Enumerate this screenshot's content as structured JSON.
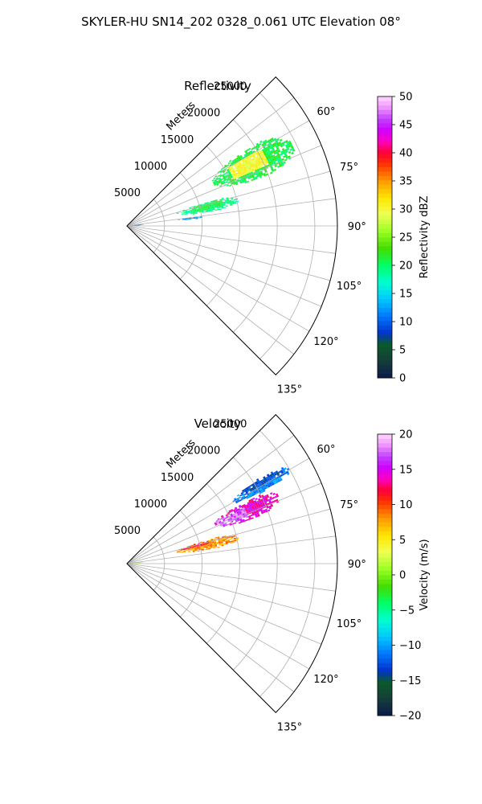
{
  "figure": {
    "suptitle": "SKYLER-HU  SN14_202  0328_0.061 UTC Elevation 08°"
  },
  "chart_data": [
    {
      "type": "heatmap",
      "projection": "polar-sector",
      "title": "Reflectivity",
      "radial_label": "Meters",
      "radial_ticks": [
        "5000",
        "10000",
        "15000",
        "20000",
        "25000"
      ],
      "radial_tick_values": [
        5000,
        10000,
        15000,
        20000,
        25000
      ],
      "rmax": 28000,
      "theta_ticks": [
        "60°",
        "75°",
        "90°",
        "105°",
        "120°",
        "135°"
      ],
      "theta_tick_values": [
        60,
        75,
        90,
        105,
        120,
        135
      ],
      "theta_range": [
        45,
        135
      ],
      "grid": true,
      "colorbar": {
        "label": "Reflectivity dBZ",
        "ticks": [
          "0",
          "5",
          "10",
          "15",
          "20",
          "25",
          "30",
          "35",
          "40",
          "45",
          "50"
        ],
        "range": [
          0,
          50
        ],
        "colormap": "pyart_HomeyerRainbow-like"
      },
      "echo_regions": [
        {
          "az_range": [
            57,
            70
          ],
          "r_range": [
            12500,
            24500
          ],
          "dominant_value": 21,
          "core_value": 30,
          "core_az": [
            60,
            66
          ],
          "core_r": [
            15500,
            20500
          ]
        },
        {
          "az_range": [
            73,
            80
          ],
          "r_range": [
            6500,
            15000
          ],
          "dominant_value": 19,
          "core_value": 21,
          "core_az": [
            74,
            78
          ],
          "core_r": [
            9000,
            13000
          ]
        },
        {
          "az_range": [
            82,
            84
          ],
          "r_range": [
            6500,
            10000
          ],
          "dominant_value": 12,
          "core_value": 12,
          "core_az": [
            82,
            84
          ],
          "core_r": [
            6500,
            10000
          ]
        },
        {
          "az_range": [
            82,
            88
          ],
          "r_range": [
            400,
            2000
          ],
          "dominant_value": 8,
          "core_value": 8,
          "core_az": [
            82,
            88
          ],
          "core_r": [
            400,
            2000
          ]
        }
      ]
    },
    {
      "type": "heatmap",
      "projection": "polar-sector",
      "title": "Velocity",
      "radial_label": "Meters",
      "radial_ticks": [
        "5000",
        "10000",
        "15000",
        "20000",
        "25000"
      ],
      "radial_tick_values": [
        5000,
        10000,
        15000,
        20000,
        25000
      ],
      "rmax": 28000,
      "theta_ticks": [
        "60°",
        "75°",
        "90°",
        "105°",
        "120°",
        "135°"
      ],
      "theta_tick_values": [
        60,
        75,
        90,
        105,
        120,
        135
      ],
      "theta_range": [
        45,
        135
      ],
      "grid": true,
      "colorbar": {
        "label": "Velocity (m/s)",
        "ticks": [
          "−20",
          "−15",
          "−10",
          "−5",
          "0",
          "5",
          "10",
          "15",
          "20"
        ],
        "range": [
          -20,
          20
        ],
        "colormap": "pyart_HomeyerRainbow-like"
      },
      "echo_regions": [
        {
          "az_range": [
            57,
            62
          ],
          "r_range": [
            16000,
            25000
          ],
          "dominant_value": -11,
          "core_value": -13,
          "core_az": [
            57,
            60
          ],
          "core_r": [
            18000,
            24000
          ]
        },
        {
          "az_range": [
            62,
            70
          ],
          "r_range": [
            12500,
            22000
          ],
          "dominant_value": 14,
          "core_value": 17,
          "core_az": [
            64,
            69
          ],
          "core_r": [
            13000,
            17000
          ]
        },
        {
          "az_range": [
            73,
            80
          ],
          "r_range": [
            6500,
            15000
          ],
          "dominant_value": 8,
          "core_value": 11,
          "core_az": [
            73,
            76
          ],
          "core_r": [
            7000,
            11000
          ]
        },
        {
          "az_range": [
            82,
            88
          ],
          "r_range": [
            400,
            2000
          ],
          "dominant_value": 1,
          "core_value": 1,
          "core_az": [
            82,
            88
          ],
          "core_r": [
            400,
            2000
          ]
        }
      ]
    }
  ]
}
